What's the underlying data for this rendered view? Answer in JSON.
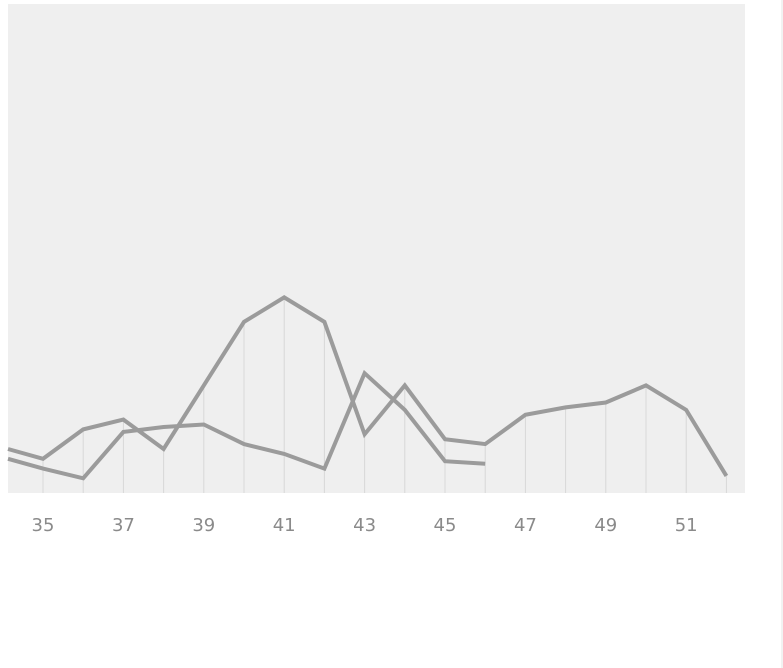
{
  "colors": {
    "plot_background": "#efefef",
    "line": "#9b9b9b",
    "gridline": "#d8d8d8",
    "tick_text": "#8a8a8a"
  },
  "chart_data": {
    "type": "line",
    "title": "",
    "xlabel": "",
    "ylabel": "",
    "xlim": [
      34.1,
      52.9
    ],
    "ylim": [
      0,
      100
    ],
    "grid": "vertical",
    "legend": "none",
    "x_tick_labels": [
      "35",
      "37",
      "39",
      "41",
      "43",
      "45",
      "47",
      "49",
      "51"
    ],
    "series": [
      {
        "x": [
          34,
          35,
          36,
          37,
          38,
          39,
          40,
          41,
          42,
          43,
          44,
          45,
          46,
          47,
          48,
          49,
          50,
          51,
          52
        ],
        "values": [
          9,
          7,
          13,
          15,
          9,
          22,
          35,
          40,
          35,
          12,
          22,
          11,
          10,
          16,
          17.5,
          18.5,
          22,
          17,
          3.5
        ]
      },
      {
        "x": [
          34,
          35,
          36,
          37,
          38,
          39,
          40,
          41,
          42,
          43,
          44,
          45,
          46
        ],
        "values": [
          7,
          5,
          3,
          12.5,
          13.5,
          14,
          10,
          8,
          5,
          24.5,
          17,
          6.5,
          6
        ]
      }
    ]
  }
}
